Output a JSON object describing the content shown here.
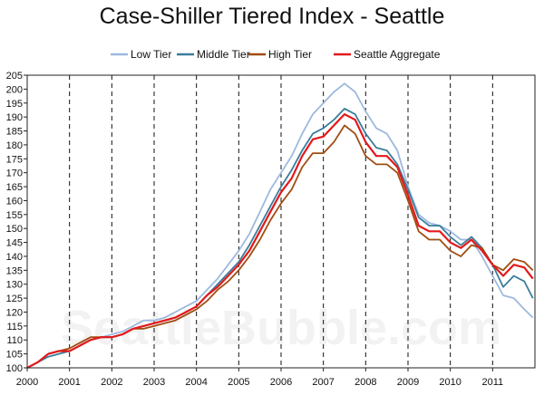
{
  "chart_data": {
    "type": "line",
    "title": "Case-Shiller Tiered Index - Seattle",
    "watermark": "SeattleBubble.com",
    "xlabel": "",
    "ylabel": "",
    "xlim": [
      2000.0,
      2012.0
    ],
    "ylim": [
      100,
      205
    ],
    "yticks": [
      100,
      105,
      110,
      115,
      120,
      125,
      130,
      135,
      140,
      145,
      150,
      155,
      160,
      165,
      170,
      175,
      180,
      185,
      190,
      195,
      200,
      205
    ],
    "xticks": [
      "2000",
      "2001",
      "2002",
      "2003",
      "2004",
      "2005",
      "2006",
      "2007",
      "2008",
      "2009",
      "2010",
      "2011"
    ],
    "grid": "dashed vertical lines at each year",
    "legend": "top",
    "series": [
      {
        "name": "Low Tier",
        "color": "#9db9de",
        "points": [
          [
            2000.0,
            100
          ],
          [
            2000.25,
            102
          ],
          [
            2000.5,
            105
          ],
          [
            2000.75,
            106
          ],
          [
            2001.0,
            106
          ],
          [
            2001.25,
            108
          ],
          [
            2001.5,
            110
          ],
          [
            2001.75,
            111
          ],
          [
            2002.0,
            112
          ],
          [
            2002.25,
            113
          ],
          [
            2002.5,
            115
          ],
          [
            2002.75,
            117
          ],
          [
            2003.0,
            117
          ],
          [
            2003.25,
            118
          ],
          [
            2003.5,
            120
          ],
          [
            2003.75,
            122
          ],
          [
            2004.0,
            124
          ],
          [
            2004.25,
            128
          ],
          [
            2004.5,
            132
          ],
          [
            2004.75,
            137
          ],
          [
            2005.0,
            142
          ],
          [
            2005.25,
            148
          ],
          [
            2005.5,
            156
          ],
          [
            2005.75,
            164
          ],
          [
            2006.0,
            170
          ],
          [
            2006.25,
            176
          ],
          [
            2006.5,
            184
          ],
          [
            2006.75,
            191
          ],
          [
            2007.0,
            195
          ],
          [
            2007.25,
            199
          ],
          [
            2007.5,
            202
          ],
          [
            2007.75,
            199
          ],
          [
            2008.0,
            192
          ],
          [
            2008.25,
            186
          ],
          [
            2008.5,
            184
          ],
          [
            2008.75,
            178
          ],
          [
            2009.0,
            165
          ],
          [
            2009.25,
            155
          ],
          [
            2009.5,
            152
          ],
          [
            2009.75,
            151
          ],
          [
            2010.0,
            149
          ],
          [
            2010.25,
            146
          ],
          [
            2010.5,
            146
          ],
          [
            2010.75,
            140
          ],
          [
            2011.0,
            133
          ],
          [
            2011.25,
            126
          ],
          [
            2011.5,
            125
          ],
          [
            2011.75,
            121
          ],
          [
            2011.95,
            118
          ]
        ]
      },
      {
        "name": "Middle Tier",
        "color": "#3a7d9c",
        "points": [
          [
            2000.0,
            100
          ],
          [
            2000.25,
            102
          ],
          [
            2000.5,
            104
          ],
          [
            2000.75,
            105
          ],
          [
            2001.0,
            106
          ],
          [
            2001.25,
            108
          ],
          [
            2001.5,
            110
          ],
          [
            2001.75,
            111
          ],
          [
            2002.0,
            111
          ],
          [
            2002.25,
            112
          ],
          [
            2002.5,
            114
          ],
          [
            2002.75,
            115
          ],
          [
            2003.0,
            116
          ],
          [
            2003.25,
            117
          ],
          [
            2003.5,
            118
          ],
          [
            2003.75,
            120
          ],
          [
            2004.0,
            122
          ],
          [
            2004.25,
            126
          ],
          [
            2004.5,
            130
          ],
          [
            2004.75,
            134
          ],
          [
            2005.0,
            138
          ],
          [
            2005.25,
            144
          ],
          [
            2005.5,
            151
          ],
          [
            2005.75,
            158
          ],
          [
            2006.0,
            165
          ],
          [
            2006.25,
            171
          ],
          [
            2006.5,
            178
          ],
          [
            2006.75,
            184
          ],
          [
            2007.0,
            186
          ],
          [
            2007.25,
            189
          ],
          [
            2007.5,
            193
          ],
          [
            2007.75,
            191
          ],
          [
            2008.0,
            184
          ],
          [
            2008.25,
            179
          ],
          [
            2008.5,
            178
          ],
          [
            2008.75,
            173
          ],
          [
            2009.0,
            164
          ],
          [
            2009.25,
            154
          ],
          [
            2009.5,
            151
          ],
          [
            2009.75,
            151
          ],
          [
            2010.0,
            147
          ],
          [
            2010.25,
            144
          ],
          [
            2010.5,
            147
          ],
          [
            2010.75,
            143
          ],
          [
            2011.0,
            137
          ],
          [
            2011.25,
            129
          ],
          [
            2011.5,
            133
          ],
          [
            2011.75,
            131
          ],
          [
            2011.95,
            125
          ]
        ]
      },
      {
        "name": "High Tier",
        "color": "#a04d12",
        "points": [
          [
            2000.0,
            100
          ],
          [
            2000.25,
            102
          ],
          [
            2000.5,
            105
          ],
          [
            2000.75,
            106
          ],
          [
            2001.0,
            107
          ],
          [
            2001.25,
            109
          ],
          [
            2001.5,
            111
          ],
          [
            2001.75,
            111
          ],
          [
            2002.0,
            111
          ],
          [
            2002.25,
            112
          ],
          [
            2002.5,
            114
          ],
          [
            2002.75,
            114
          ],
          [
            2003.0,
            115
          ],
          [
            2003.25,
            116
          ],
          [
            2003.5,
            117
          ],
          [
            2003.75,
            119
          ],
          [
            2004.0,
            121
          ],
          [
            2004.25,
            124
          ],
          [
            2004.5,
            128
          ],
          [
            2004.75,
            131
          ],
          [
            2005.0,
            135
          ],
          [
            2005.25,
            140
          ],
          [
            2005.5,
            146
          ],
          [
            2005.75,
            153
          ],
          [
            2006.0,
            159
          ],
          [
            2006.25,
            164
          ],
          [
            2006.5,
            172
          ],
          [
            2006.75,
            177
          ],
          [
            2007.0,
            177
          ],
          [
            2007.25,
            181
          ],
          [
            2007.5,
            187
          ],
          [
            2007.75,
            184
          ],
          [
            2008.0,
            176
          ],
          [
            2008.25,
            173
          ],
          [
            2008.5,
            173
          ],
          [
            2008.75,
            170
          ],
          [
            2009.0,
            160
          ],
          [
            2009.25,
            149
          ],
          [
            2009.5,
            146
          ],
          [
            2009.75,
            146
          ],
          [
            2010.0,
            142
          ],
          [
            2010.25,
            140
          ],
          [
            2010.5,
            144
          ],
          [
            2010.75,
            143
          ],
          [
            2011.0,
            137
          ],
          [
            2011.25,
            135
          ],
          [
            2011.5,
            139
          ],
          [
            2011.75,
            138
          ],
          [
            2011.95,
            135
          ]
        ]
      },
      {
        "name": "Seattle Aggregate",
        "color": "#e3191c",
        "points": [
          [
            2000.0,
            100
          ],
          [
            2000.25,
            102
          ],
          [
            2000.5,
            105
          ],
          [
            2000.75,
            106
          ],
          [
            2001.0,
            106
          ],
          [
            2001.25,
            108
          ],
          [
            2001.5,
            110
          ],
          [
            2001.75,
            111
          ],
          [
            2002.0,
            111
          ],
          [
            2002.25,
            112
          ],
          [
            2002.5,
            114
          ],
          [
            2002.75,
            115
          ],
          [
            2003.0,
            116
          ],
          [
            2003.25,
            117
          ],
          [
            2003.5,
            118
          ],
          [
            2003.75,
            120
          ],
          [
            2004.0,
            122
          ],
          [
            2004.25,
            126
          ],
          [
            2004.5,
            129
          ],
          [
            2004.75,
            133
          ],
          [
            2005.0,
            137
          ],
          [
            2005.25,
            142
          ],
          [
            2005.5,
            149
          ],
          [
            2005.75,
            156
          ],
          [
            2006.0,
            163
          ],
          [
            2006.25,
            168
          ],
          [
            2006.5,
            176
          ],
          [
            2006.75,
            182
          ],
          [
            2007.0,
            183
          ],
          [
            2007.25,
            187
          ],
          [
            2007.5,
            191
          ],
          [
            2007.75,
            189
          ],
          [
            2008.0,
            181
          ],
          [
            2008.25,
            176
          ],
          [
            2008.5,
            176
          ],
          [
            2008.75,
            172
          ],
          [
            2009.0,
            162
          ],
          [
            2009.25,
            151
          ],
          [
            2009.5,
            149
          ],
          [
            2009.75,
            149
          ],
          [
            2010.0,
            145
          ],
          [
            2010.25,
            143
          ],
          [
            2010.5,
            146
          ],
          [
            2010.75,
            142
          ],
          [
            2011.0,
            137
          ],
          [
            2011.25,
            133
          ],
          [
            2011.5,
            137
          ],
          [
            2011.75,
            136
          ],
          [
            2011.95,
            132
          ]
        ]
      }
    ]
  }
}
